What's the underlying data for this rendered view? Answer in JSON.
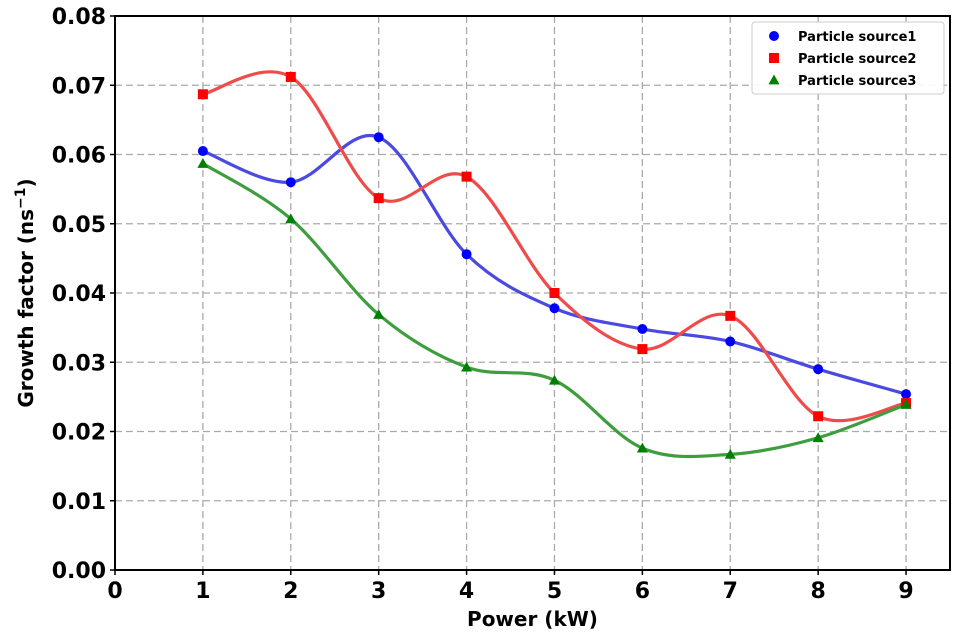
{
  "chart_data": {
    "type": "line",
    "xlabel": "Power (kW)",
    "ylabel_text": "Growth factor (ns",
    "ylabel_exp": "−1",
    "ylabel_close": ")",
    "xlim": [
      0,
      9.5
    ],
    "ylim": [
      0,
      0.08
    ],
    "xticks": [
      "0",
      "1",
      "2",
      "3",
      "4",
      "5",
      "6",
      "7",
      "8",
      "9"
    ],
    "yticks": [
      "0.00",
      "0.01",
      "0.02",
      "0.03",
      "0.04",
      "0.05",
      "0.06",
      "0.07",
      "0.08"
    ],
    "grid": true,
    "legend_position": "top-right",
    "x": [
      1,
      2,
      3,
      4,
      5,
      6,
      7,
      8,
      9
    ],
    "series": [
      {
        "name": "Particle source1",
        "marker": "circle",
        "marker_color": "#0000ff",
        "line_color": "#4a4ae0",
        "values": [
          0.0605,
          0.056,
          0.0625,
          0.0456,
          0.0378,
          0.0348,
          0.033,
          0.029,
          0.0254
        ]
      },
      {
        "name": "Particle source2",
        "marker": "square",
        "marker_color": "#ff0000",
        "line_color": "#f04b4b",
        "values": [
          0.0687,
          0.0712,
          0.0537,
          0.0568,
          0.04,
          0.0319,
          0.0367,
          0.0222,
          0.0241
        ]
      },
      {
        "name": "Particle source3",
        "marker": "triangle",
        "marker_color": "#008000",
        "line_color": "#3e9e3e",
        "values": [
          0.0587,
          0.0507,
          0.0369,
          0.0293,
          0.0274,
          0.0176,
          0.0167,
          0.0191,
          0.0239
        ]
      }
    ]
  }
}
